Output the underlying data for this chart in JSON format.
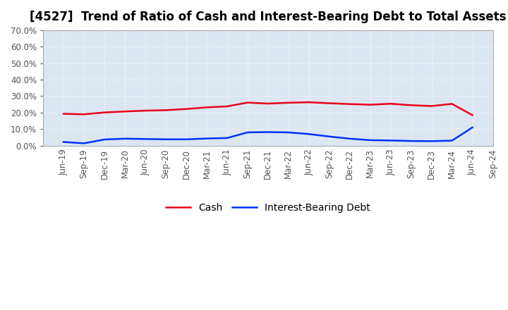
{
  "title": "[4527]  Trend of Ratio of Cash and Interest-Bearing Debt to Total Assets",
  "x_labels": [
    "Jun-19",
    "Sep-19",
    "Dec-19",
    "Mar-20",
    "Jun-20",
    "Sep-20",
    "Dec-20",
    "Mar-21",
    "Jun-21",
    "Sep-21",
    "Dec-21",
    "Mar-22",
    "Jun-22",
    "Sep-22",
    "Dec-22",
    "Mar-23",
    "Jun-23",
    "Sep-23",
    "Dec-23",
    "Mar-24",
    "Jun-24",
    "Sep-24"
  ],
  "cash": [
    0.193,
    0.19,
    0.201,
    0.207,
    0.212,
    0.215,
    0.222,
    0.232,
    0.238,
    0.261,
    0.255,
    0.26,
    0.263,
    0.257,
    0.252,
    0.248,
    0.254,
    0.245,
    0.24,
    0.253,
    0.185,
    null
  ],
  "debt": [
    0.022,
    0.014,
    0.037,
    0.042,
    0.04,
    0.038,
    0.038,
    0.043,
    0.046,
    0.08,
    0.082,
    0.08,
    0.07,
    0.055,
    0.042,
    0.033,
    0.031,
    0.028,
    0.027,
    0.03,
    0.11,
    null
  ],
  "cash_color": "#e8001c",
  "debt_color": "#0032ff",
  "ylim": [
    0.0,
    0.7
  ],
  "yticks": [
    0.0,
    0.1,
    0.2,
    0.3,
    0.4,
    0.5,
    0.6,
    0.7
  ],
  "bg_color": "#ffffff",
  "plot_bg_color": "#dce6f1",
  "grid_color": "#ffffff",
  "legend_cash": "Cash",
  "legend_debt": "Interest-Bearing Debt",
  "title_fontsize": 12,
  "axis_fontsize": 8.5,
  "legend_fontsize": 10,
  "line_width": 1.8
}
